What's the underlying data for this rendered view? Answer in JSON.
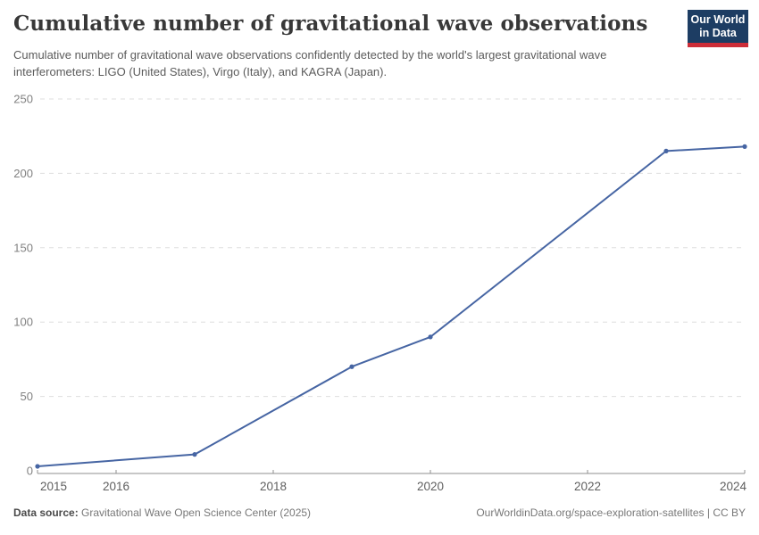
{
  "header": {
    "title": "Cumulative number of gravitational wave observations",
    "subtitle": "Cumulative number of gravitational wave observations confidently detected by the world's largest gravitational wave interferometers: LIGO (United States), Virgo (Italy), and KAGRA (Japan).",
    "logo": {
      "line1": "Our World",
      "line2": "in Data",
      "bg_color": "#1d3d63",
      "bar_color": "#cd2d38"
    }
  },
  "chart_data": {
    "type": "line",
    "title": "Cumulative number of gravitational wave observations",
    "x": [
      2015,
      2017,
      2019,
      2020,
      2023,
      2024
    ],
    "values": [
      3,
      11,
      70,
      90,
      215,
      218
    ],
    "xlabel": "",
    "ylabel": "",
    "xlim": [
      2015,
      2024
    ],
    "ylim": [
      0,
      250
    ],
    "x_ticks": [
      2015,
      2016,
      2018,
      2020,
      2022,
      2024
    ],
    "y_ticks": [
      0,
      50,
      100,
      150,
      200,
      250
    ],
    "grid": "horizontal-dashed",
    "legend": "none",
    "line_color": "#4665a3",
    "marker": "circle",
    "gridline_color": "#dedede",
    "axis_color": "#8f8f8f",
    "y_tick_label_color": "#818181",
    "x_tick_label_color": "#5f5f5f"
  },
  "footer": {
    "source_label": "Data source:",
    "source_text": " Gravitational Wave Open Science Center (2025)",
    "attribution": "OurWorldinData.org/space-exploration-satellites | CC BY"
  }
}
